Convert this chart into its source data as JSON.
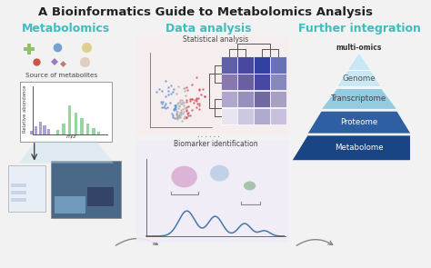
{
  "title": "A Bioinformatics Guide to Metabolomics Analysis",
  "title_fontsize": 9.5,
  "title_color": "#222222",
  "bg_color": "#f2f2f2",
  "col1_label": "Metabolomics",
  "col2_label": "Data analysis",
  "col3_label": "Further integration",
  "col_label_color": "#3dbdbd",
  "source_text": "Source of metabolites",
  "mz_label": "m/z",
  "abundance_label": "Relative abundance",
  "stat_text": "Statistical analysis",
  "biomarker_text": "Biomarker identification",
  "multiomics_text": "multi-omics",
  "pyramid_labels": [
    "Genome",
    "Transcriptome",
    "Proteome",
    "Metabolome"
  ],
  "pyramid_colors": [
    "#c8e8f5",
    "#93cce0",
    "#2e5fa3",
    "#1a4585"
  ],
  "pyramid_text_colors": [
    "#555555",
    "#444444",
    "#ffffff",
    "#ffffff"
  ],
  "stat_bg": "#f7eeee",
  "biomarker_bg": "#f0edf8",
  "volcano_blue": "#5588cc",
  "volcano_red": "#cc4455",
  "volcano_gray": "#aaaaaa",
  "chrom_color": "#4477aa",
  "bar_purple": "#9988cc",
  "bar_green": "#77cc88",
  "hm_colors": [
    [
      "#e8e4f0",
      "#ccc8e0",
      "#b0aad0",
      "#c8c0dc"
    ],
    [
      "#b0a8cc",
      "#9890bc",
      "#7068a0",
      "#a8a0c0"
    ],
    [
      "#8878b0",
      "#6860a0",
      "#4848a0",
      "#8888c0"
    ],
    [
      "#6060a8",
      "#4848a0",
      "#3040a0",
      "#6870b8"
    ]
  ],
  "arrow_color": "#888888"
}
